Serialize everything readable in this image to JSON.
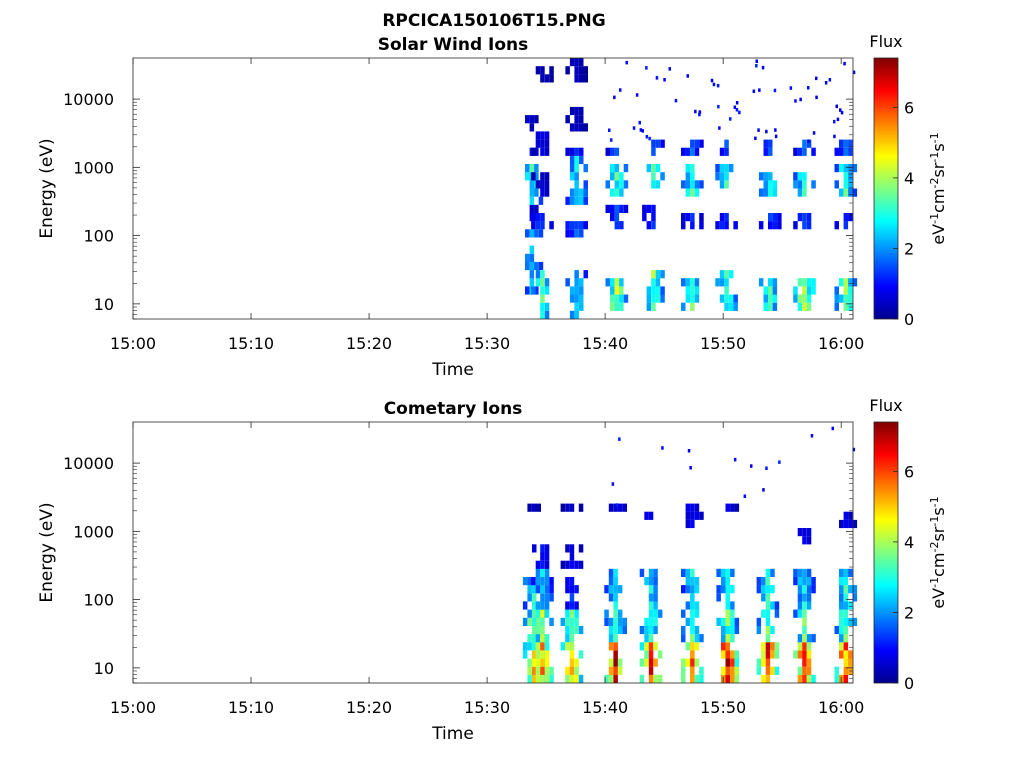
{
  "figure_title": "RPCICA150106T15.PNG",
  "chart_data": [
    {
      "type": "heatmap",
      "title": "Solar Wind Ions",
      "xlabel": "Time",
      "ylabel": "Energy (eV)",
      "x_ticks": [
        "15:00",
        "15:10",
        "15:20",
        "15:30",
        "15:40",
        "15:50",
        "16:00"
      ],
      "x_tick_minutes": [
        0,
        10,
        20,
        30,
        40,
        50,
        60
      ],
      "xlim_minutes": [
        0,
        61
      ],
      "y_scale": "log",
      "y_ticks": [
        "10",
        "100",
        "1000",
        "10000"
      ],
      "y_tick_values": [
        10,
        100,
        1000,
        10000
      ],
      "ylim": [
        6,
        40000
      ],
      "colorbar": {
        "label": "Flux",
        "unit_label": "eV-1cm-2sr-1s-1",
        "ticks": [
          "0",
          "2",
          "4",
          "6"
        ],
        "tick_values": [
          0,
          2,
          4,
          6
        ],
        "range": [
          0,
          7.4
        ],
        "colormap": "jet"
      },
      "data_start_minute": 33,
      "bursts": [
        {
          "t": 33.6,
          "bands": [
            [
              14,
              70,
              2.0
            ],
            [
              300,
              1200,
              2.8
            ],
            [
              1300,
              1800,
              1.0
            ],
            [
              3000,
              6000,
              0.5
            ],
            [
              180,
              300,
              0.6
            ],
            [
              100,
              140,
              2.2
            ]
          ]
        },
        {
          "t": 34.5,
          "bands": [
            [
              6,
              30,
              3.0
            ],
            [
              110,
              200,
              1.4
            ],
            [
              400,
              900,
              0.6
            ],
            [
              1500,
              3000,
              0.7
            ],
            [
              20000,
              30000,
              0.4
            ]
          ]
        },
        {
          "t": 37.4,
          "bands": [
            [
              6,
              30,
              2.4
            ],
            [
              300,
              1300,
              2.6
            ],
            [
              1400,
              2200,
              1.0
            ],
            [
              3000,
              7000,
              0.5
            ],
            [
              90,
              160,
              1.6
            ],
            [
              20000,
              35000,
              0.4
            ]
          ]
        },
        {
          "t": 40.8,
          "bands": [
            [
              8,
              25,
              3.8
            ],
            [
              400,
              1000,
              3.0
            ],
            [
              1400,
              2200,
              1.4
            ],
            [
              130,
              250,
              1.3
            ]
          ]
        },
        {
          "t": 43.9,
          "bands": [
            [
              7,
              28,
              3.4
            ],
            [
              450,
              1000,
              3.0
            ],
            [
              1400,
              2400,
              1.5
            ],
            [
              140,
              250,
              1.2
            ]
          ]
        },
        {
          "t": 47.2,
          "bands": [
            [
              7,
              26,
              3.2
            ],
            [
              400,
              1000,
              3.0
            ],
            [
              1500,
              2300,
              1.5
            ],
            [
              120,
              220,
              1.2
            ]
          ]
        },
        {
          "t": 50.1,
          "bands": [
            [
              7,
              28,
              3.2
            ],
            [
              450,
              1000,
              3.0
            ],
            [
              1500,
              2400,
              1.4
            ],
            [
              130,
              240,
              1.2
            ]
          ]
        },
        {
          "t": 53.8,
          "bands": [
            [
              7,
              25,
              3.0
            ],
            [
              380,
              950,
              2.8
            ],
            [
              1400,
              2300,
              1.4
            ],
            [
              110,
              200,
              1.2
            ]
          ]
        },
        {
          "t": 56.7,
          "bands": [
            [
              7,
              25,
              4.0
            ],
            [
              380,
              950,
              3.0
            ],
            [
              1500,
              2400,
              1.5
            ],
            [
              120,
              230,
              1.3
            ]
          ]
        },
        {
          "t": 60.2,
          "bands": [
            [
              7,
              25,
              3.4
            ],
            [
              400,
              1000,
              3.0
            ],
            [
              1400,
              2300,
              1.5
            ],
            [
              110,
              200,
              1.2
            ]
          ]
        }
      ]
    },
    {
      "type": "heatmap",
      "title": "Cometary Ions",
      "xlabel": "Time",
      "ylabel": "Energy (eV)",
      "x_ticks": [
        "15:00",
        "15:10",
        "15:20",
        "15:30",
        "15:40",
        "15:50",
        "16:00"
      ],
      "x_tick_minutes": [
        0,
        10,
        20,
        30,
        40,
        50,
        60
      ],
      "xlim_minutes": [
        0,
        61
      ],
      "y_scale": "log",
      "y_ticks": [
        "10",
        "100",
        "1000",
        "10000"
      ],
      "y_tick_values": [
        10,
        100,
        1000,
        10000
      ],
      "ylim": [
        6,
        40000
      ],
      "colorbar": {
        "label": "Flux",
        "unit_label": "eV-1cm-2sr-1s-1",
        "ticks": [
          "0",
          "2",
          "4",
          "6"
        ],
        "tick_values": [
          0,
          2,
          4,
          6
        ],
        "range": [
          0,
          7.4
        ],
        "colormap": "jet"
      },
      "data_start_minute": 33,
      "bursts": [
        {
          "t": 33.8,
          "bands": [
            [
              6,
              20,
              5.0
            ],
            [
              20,
              60,
              3.8
            ],
            [
              60,
              200,
              2.8
            ],
            [
              1800,
              2500,
              0.5
            ],
            [
              500,
              700,
              0.6
            ]
          ]
        },
        {
          "t": 34.5,
          "bands": [
            [
              6,
              22,
              5.0
            ],
            [
              22,
              80,
              3.6
            ],
            [
              80,
              250,
              2.2
            ],
            [
              300,
              600,
              1.0
            ]
          ]
        },
        {
          "t": 37.0,
          "bands": [
            [
              6,
              22,
              5.0
            ],
            [
              22,
              80,
              3.4
            ],
            [
              80,
              200,
              1.2
            ],
            [
              250,
              600,
              0.8
            ],
            [
              1800,
              2500,
              0.5
            ]
          ]
        },
        {
          "t": 40.7,
          "bands": [
            [
              6,
              22,
              6.0
            ],
            [
              22,
              70,
              3.2
            ],
            [
              70,
              300,
              2.6
            ],
            [
              1800,
              2500,
              0.8
            ]
          ]
        },
        {
          "t": 43.7,
          "bands": [
            [
              6,
              22,
              5.8
            ],
            [
              22,
              70,
              3.2
            ],
            [
              70,
              250,
              2.6
            ],
            [
              1500,
              2200,
              0.8
            ]
          ]
        },
        {
          "t": 47.2,
          "bands": [
            [
              6,
              22,
              5.6
            ],
            [
              22,
              70,
              3.2
            ],
            [
              70,
              250,
              2.6
            ],
            [
              1200,
              2400,
              0.8
            ]
          ]
        },
        {
          "t": 50.2,
          "bands": [
            [
              6,
              22,
              6.6
            ],
            [
              22,
              70,
              3.4
            ],
            [
              70,
              250,
              2.8
            ],
            [
              1800,
              2500,
              0.8
            ]
          ]
        },
        {
          "t": 53.6,
          "bands": [
            [
              6,
              22,
              5.8
            ],
            [
              22,
              70,
              3.4
            ],
            [
              70,
              250,
              2.8
            ]
          ]
        },
        {
          "t": 56.7,
          "bands": [
            [
              6,
              22,
              5.8
            ],
            [
              22,
              70,
              3.2
            ],
            [
              70,
              250,
              2.6
            ],
            [
              600,
              1100,
              0.8
            ]
          ]
        },
        {
          "t": 60.2,
          "bands": [
            [
              6,
              22,
              6.0
            ],
            [
              22,
              70,
              3.4
            ],
            [
              70,
              250,
              2.8
            ],
            [
              1000,
              2200,
              0.8
            ]
          ]
        }
      ]
    }
  ]
}
